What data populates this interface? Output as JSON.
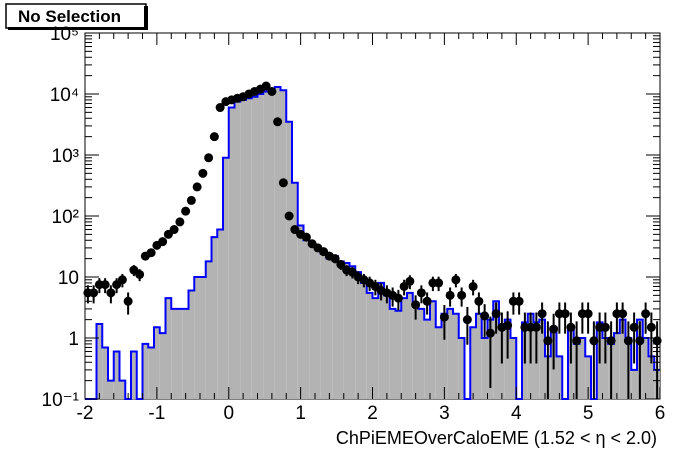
{
  "title": "No Selection",
  "chart_data": {
    "type": "histogram",
    "title": "No Selection",
    "xlabel": "ChPiEMEOverCaloEME (1.52 <  η < 2.0)",
    "xlim": [
      -2,
      6
    ],
    "ylim": [
      0.1,
      100000
    ],
    "log_y": true,
    "grid": false,
    "x_ticks": [
      "-2",
      "-1",
      "0",
      "1",
      "2",
      "3",
      "4",
      "5",
      "6"
    ],
    "y_ticks": [
      "10⁻¹",
      "1",
      "10",
      "10²",
      "10³",
      "10⁴",
      "10⁵"
    ],
    "bin_width": 0.08,
    "series": [
      {
        "kind": "filled-histogram",
        "fill": "#b3b3b3",
        "outline": "#0000ff",
        "bins": [
          [
            -2.0,
            0.1
          ],
          [
            -1.92,
            0.1
          ],
          [
            -1.84,
            1.7
          ],
          [
            -1.76,
            0.7
          ],
          [
            -1.68,
            0.2
          ],
          [
            -1.6,
            0.6
          ],
          [
            -1.52,
            0.2
          ],
          [
            -1.44,
            0.1
          ],
          [
            -1.36,
            0.6
          ],
          [
            -1.28,
            0.1
          ],
          [
            -1.2,
            0.8
          ],
          [
            -1.12,
            0.7
          ],
          [
            -1.04,
            1.5
          ],
          [
            -0.96,
            1.2
          ],
          [
            -0.88,
            4.5
          ],
          [
            -0.8,
            3.0
          ],
          [
            -0.72,
            3.0
          ],
          [
            -0.64,
            3.0
          ],
          [
            -0.56,
            6.0
          ],
          [
            -0.48,
            10
          ],
          [
            -0.4,
            10
          ],
          [
            -0.32,
            18
          ],
          [
            -0.24,
            45
          ],
          [
            -0.16,
            60
          ],
          [
            -0.08,
            900
          ],
          [
            0.0,
            6000
          ],
          [
            0.08,
            7500
          ],
          [
            0.16,
            8000
          ],
          [
            0.24,
            8500
          ],
          [
            0.32,
            9000
          ],
          [
            0.4,
            10000
          ],
          [
            0.48,
            11000
          ],
          [
            0.56,
            12000
          ],
          [
            0.64,
            13000
          ],
          [
            0.72,
            11500
          ],
          [
            0.8,
            3500
          ],
          [
            0.88,
            350
          ],
          [
            0.96,
            70
          ],
          [
            1.04,
            40
          ],
          [
            1.12,
            35
          ],
          [
            1.2,
            30
          ],
          [
            1.28,
            24
          ],
          [
            1.36,
            20
          ],
          [
            1.44,
            22
          ],
          [
            1.52,
            18
          ],
          [
            1.6,
            17
          ],
          [
            1.68,
            15
          ],
          [
            1.76,
            12
          ],
          [
            1.84,
            8
          ],
          [
            1.92,
            5.5
          ],
          [
            2.0,
            4.5
          ],
          [
            2.08,
            8
          ],
          [
            2.16,
            5
          ],
          [
            2.24,
            3
          ],
          [
            2.32,
            2.8
          ],
          [
            2.4,
            4.5
          ],
          [
            2.48,
            5.5
          ],
          [
            2.56,
            3.5
          ],
          [
            2.64,
            3.0
          ],
          [
            2.72,
            2.0
          ],
          [
            2.8,
            4.0
          ],
          [
            2.88,
            1.5
          ],
          [
            2.96,
            2.5
          ],
          [
            3.04,
            3.0
          ],
          [
            3.12,
            2.5
          ],
          [
            3.2,
            1.0
          ],
          [
            3.28,
            0.1
          ],
          [
            3.36,
            1.5
          ],
          [
            3.44,
            2.5
          ],
          [
            3.52,
            1.0
          ],
          [
            3.6,
            2.0
          ],
          [
            3.68,
            4.0
          ],
          [
            3.76,
            1.5
          ],
          [
            3.84,
            2.0
          ],
          [
            3.92,
            1.0
          ],
          [
            4.0,
            0.1
          ],
          [
            4.08,
            1.8
          ],
          [
            4.16,
            2.5
          ],
          [
            4.24,
            1.8
          ],
          [
            4.32,
            2.0
          ],
          [
            4.4,
            0.5
          ],
          [
            4.48,
            1.5
          ],
          [
            4.56,
            0.5
          ],
          [
            4.64,
            0.1
          ],
          [
            4.72,
            1.5
          ],
          [
            4.8,
            0.8
          ],
          [
            4.88,
            1.0
          ],
          [
            4.96,
            0.5
          ],
          [
            5.04,
            0.1
          ],
          [
            5.12,
            1.8
          ],
          [
            5.2,
            1.0
          ],
          [
            5.28,
            0.8
          ],
          [
            5.36,
            1.2
          ],
          [
            5.44,
            2.0
          ],
          [
            5.52,
            1.0
          ],
          [
            5.6,
            0.3
          ],
          [
            5.68,
            2.0
          ],
          [
            5.76,
            1.0
          ],
          [
            5.84,
            0.5
          ],
          [
            5.92,
            0.3
          ]
        ]
      },
      {
        "kind": "points-with-errors",
        "color": "#000000",
        "points": [
          [
            -1.96,
            5.5
          ],
          [
            -1.88,
            5.5
          ],
          [
            -1.8,
            7.5
          ],
          [
            -1.72,
            7.5
          ],
          [
            -1.64,
            5.5
          ],
          [
            -1.56,
            7.5
          ],
          [
            -1.48,
            9
          ],
          [
            -1.4,
            4
          ],
          [
            -1.32,
            13
          ],
          [
            -1.24,
            11
          ],
          [
            -1.16,
            22
          ],
          [
            -1.08,
            25
          ],
          [
            -1.0,
            33
          ],
          [
            -0.92,
            38
          ],
          [
            -0.84,
            50
          ],
          [
            -0.76,
            60
          ],
          [
            -0.68,
            80
          ],
          [
            -0.6,
            120
          ],
          [
            -0.52,
            180
          ],
          [
            -0.44,
            300
          ],
          [
            -0.36,
            500
          ],
          [
            -0.28,
            900
          ],
          [
            -0.2,
            2000
          ],
          [
            -0.12,
            6000
          ],
          [
            -0.04,
            7500
          ],
          [
            0.04,
            8000
          ],
          [
            0.12,
            8500
          ],
          [
            0.2,
            9000
          ],
          [
            0.28,
            10000
          ],
          [
            0.36,
            11000
          ],
          [
            0.44,
            12000
          ],
          [
            0.52,
            13500
          ],
          [
            0.6,
            11000
          ],
          [
            0.68,
            3500
          ],
          [
            0.76,
            350
          ],
          [
            0.84,
            100
          ],
          [
            0.92,
            60
          ],
          [
            1.0,
            50
          ],
          [
            1.08,
            45
          ],
          [
            1.16,
            35
          ],
          [
            1.24,
            30
          ],
          [
            1.32,
            26
          ],
          [
            1.4,
            22
          ],
          [
            1.48,
            20
          ],
          [
            1.56,
            16
          ],
          [
            1.64,
            13
          ],
          [
            1.72,
            12
          ],
          [
            1.8,
            10
          ],
          [
            1.88,
            9
          ],
          [
            1.96,
            8
          ],
          [
            2.04,
            7
          ],
          [
            2.12,
            6
          ],
          [
            2.2,
            5.5
          ],
          [
            2.28,
            5
          ],
          [
            2.36,
            4.5
          ],
          [
            2.44,
            7
          ],
          [
            2.52,
            8.5
          ],
          [
            2.6,
            3.5
          ],
          [
            2.68,
            5.5
          ],
          [
            2.76,
            4
          ],
          [
            2.84,
            8
          ],
          [
            2.92,
            8
          ],
          [
            3.0,
            2.2
          ],
          [
            3.08,
            5
          ],
          [
            3.16,
            9
          ],
          [
            3.24,
            5
          ],
          [
            3.32,
            2
          ],
          [
            3.4,
            7
          ],
          [
            3.48,
            4
          ],
          [
            3.56,
            2.3
          ],
          [
            3.64,
            1.2
          ],
          [
            3.72,
            2.5
          ],
          [
            3.8,
            1.5
          ],
          [
            3.88,
            1.6
          ],
          [
            3.96,
            4
          ],
          [
            4.04,
            4
          ],
          [
            4.12,
            1.5
          ],
          [
            4.2,
            1.5
          ],
          [
            4.28,
            1.5
          ],
          [
            4.36,
            2.5
          ],
          [
            4.44,
            0.9
          ],
          [
            4.52,
            1.4
          ],
          [
            4.6,
            2.5
          ],
          [
            4.68,
            2.5
          ],
          [
            4.76,
            1.5
          ],
          [
            4.84,
            0.9
          ],
          [
            4.92,
            2.5
          ],
          [
            5.0,
            2.5
          ],
          [
            5.08,
            0.9
          ],
          [
            5.16,
            1.5
          ],
          [
            5.24,
            1.5
          ],
          [
            5.32,
            0.9
          ],
          [
            5.4,
            2.5
          ],
          [
            5.48,
            2.5
          ],
          [
            5.56,
            0.9
          ],
          [
            5.64,
            1.5
          ],
          [
            5.72,
            0.9
          ],
          [
            5.8,
            2.5
          ],
          [
            5.88,
            1.5
          ],
          [
            5.96,
            0.9
          ]
        ]
      }
    ]
  }
}
